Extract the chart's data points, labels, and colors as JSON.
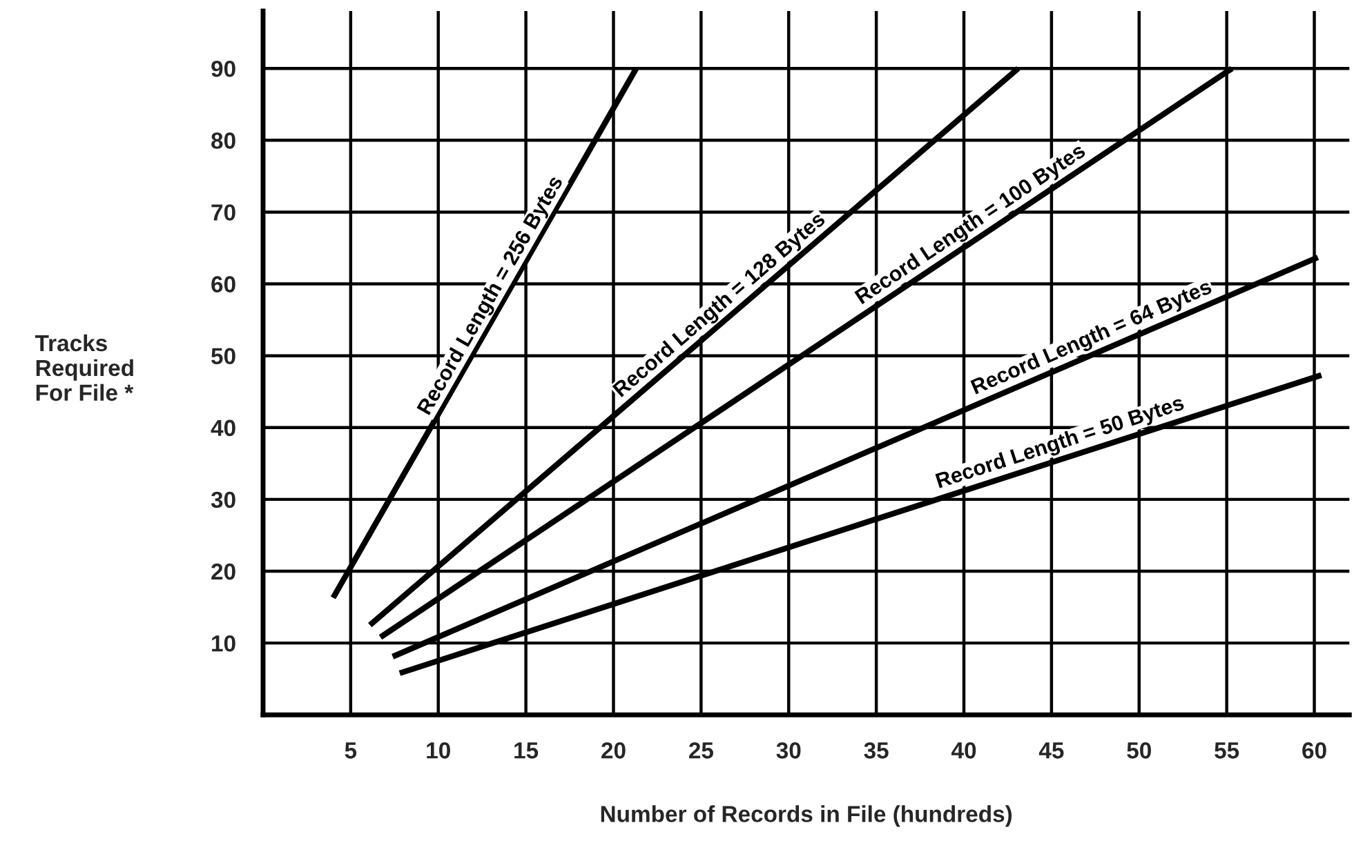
{
  "chart_data": {
    "type": "line",
    "xlabel": "Number of Records in File (hundreds)",
    "ylabel": "Tracks\nRequired\nFor File *",
    "xlim": [
      0,
      62
    ],
    "ylim": [
      0,
      98
    ],
    "xticks": [
      5,
      10,
      15,
      20,
      25,
      30,
      35,
      40,
      45,
      50,
      55,
      60
    ],
    "yticks": [
      10,
      20,
      30,
      40,
      50,
      60,
      70,
      80,
      90
    ],
    "grid": true,
    "marker": "none",
    "line_style": "solid",
    "series": [
      {
        "name": "Record Length = 256 Bytes",
        "color": "#000000",
        "x": [
          4.0,
          21.3
        ],
        "values": [
          16.3,
          90
        ]
      },
      {
        "name": "Record Length = 128 Bytes",
        "color": "#000000",
        "x": [
          6.1,
          43.1
        ],
        "values": [
          12.5,
          90
        ]
      },
      {
        "name": "Record Length = 100 Bytes",
        "color": "#000000",
        "x": [
          6.7,
          55.3
        ],
        "values": [
          10.8,
          90
        ]
      },
      {
        "name": "Record Length = 64 Bytes",
        "color": "#000000",
        "x": [
          7.4,
          60.2
        ],
        "values": [
          8.1,
          63.7
        ]
      },
      {
        "name": "Record Length = 50 Bytes",
        "color": "#000000",
        "x": [
          7.8,
          60.4
        ],
        "values": [
          5.8,
          47.3
        ]
      }
    ]
  }
}
